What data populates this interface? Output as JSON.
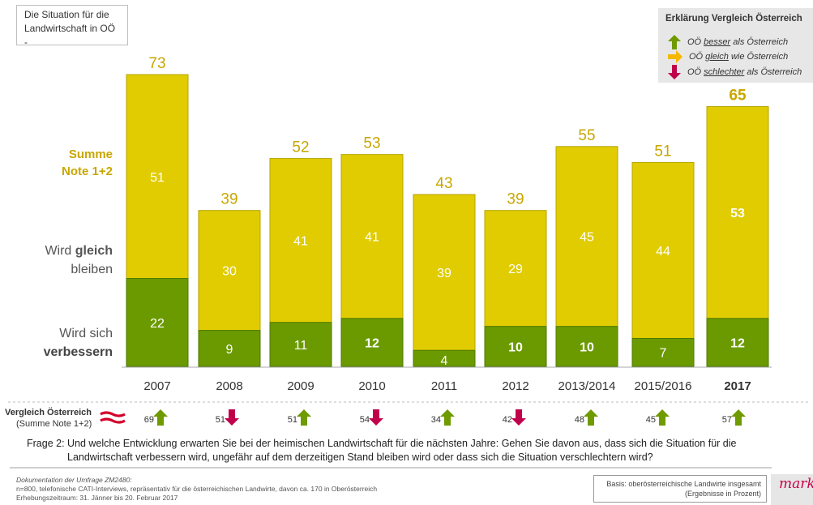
{
  "title_box": {
    "line1": "Die Situation für die",
    "line2": "Landwirtschaft in OÖ  -"
  },
  "legend": {
    "title": "Erklärung Vergleich Österreich",
    "items": [
      {
        "icon": "arrow-up-icon",
        "color": "#6f9a00",
        "pre": "OÖ ",
        "key": "besser",
        "post": " als Österreich"
      },
      {
        "icon": "arrow-right-icon",
        "color": "#f5b800",
        "pre": "OÖ ",
        "key": "gleich",
        "post": " wie Österreich"
      },
      {
        "icon": "arrow-down-icon",
        "color": "#c0004a",
        "pre": "OÖ ",
        "key": "schlechter",
        "post": " als Österreich"
      }
    ]
  },
  "row_labels": {
    "summe_line1": "Summe",
    "summe_line2": "Note 1+2",
    "gleich_pre": "Wird ",
    "gleich_bold": "gleich",
    "gleich_line2": "bleiben",
    "verb_line1": "Wird sich",
    "verb_line2": "verbessern"
  },
  "comparison": {
    "label_line1": "Vergleich Österreich",
    "label_line2": "(Summe Note 1+2)",
    "items": [
      {
        "value": "69",
        "direction": "up"
      },
      {
        "value": "51",
        "direction": "down"
      },
      {
        "value": "51",
        "direction": "up"
      },
      {
        "value": "54",
        "direction": "down"
      },
      {
        "value": "34",
        "direction": "up"
      },
      {
        "value": "42",
        "direction": "down"
      },
      {
        "value": "48",
        "direction": "up"
      },
      {
        "value": "45",
        "direction": "up"
      },
      {
        "value": "57",
        "direction": "up"
      }
    ]
  },
  "question": {
    "number": "Frage 2:",
    "line1": "Und welche Entwicklung erwarten Sie bei der heimischen Landwirtschaft für die nächsten Jahre: Gehen Sie davon aus, dass sich die Situation für die",
    "line2": "Landwirtschaft verbessern wird, ungefähr auf dem derzeitigen Stand bleiben wird oder dass sich die Situation verschlechtern wird?"
  },
  "documentation": {
    "title": "Dokumentation der Umfrage ZM2480:",
    "line1": "n=800, telefonische CATI-Interviews, repräsentativ für die österreichischen Landwirte, davon ca. 170 in Oberösterreich",
    "line2": "Erhebungszeitraum: 31. Jänner bis 20. Februar 2017"
  },
  "basis": {
    "line1": "Basis: oberösterreichische Landwirte insgesamt",
    "line2": "(Ergebnisse in Prozent)"
  },
  "brand": {
    "text": "marke"
  },
  "colors": {
    "yellow": "#e0cc00",
    "yellow_border": "#b8a500",
    "green": "#6b9a00",
    "green_border": "#4d7a00",
    "total_text": "#c8a600",
    "up": "#6f9a00",
    "down": "#c0004a",
    "neutral": "#f5b800"
  },
  "chart_data": {
    "type": "bar",
    "stacked": true,
    "categories": [
      "2007",
      "2008",
      "2009",
      "2010",
      "2011",
      "2012",
      "2013/2014",
      "2015/2016",
      "2017"
    ],
    "highlight_category": "2017",
    "series": [
      {
        "name": "Wird sich verbessern",
        "values": [
          22,
          9,
          11,
          12,
          4,
          10,
          10,
          7,
          12
        ],
        "color": "#6b9a00"
      },
      {
        "name": "Wird gleich bleiben",
        "values": [
          51,
          30,
          41,
          41,
          39,
          29,
          45,
          44,
          53
        ],
        "color": "#e0cc00"
      }
    ],
    "totals": [
      73,
      39,
      52,
      53,
      43,
      39,
      55,
      51,
      65
    ],
    "ylim": [
      0,
      73
    ]
  }
}
